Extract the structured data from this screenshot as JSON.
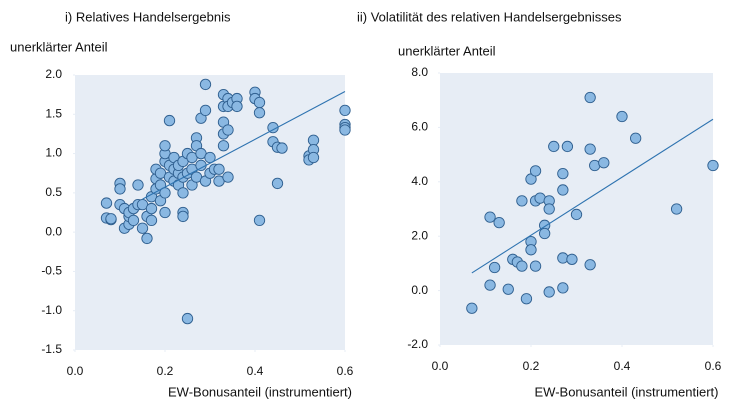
{
  "chart_data": [
    {
      "type": "scatter",
      "title": "i) Relatives Handelsergebnis",
      "y_label": "unerklärter Anteil",
      "x_label": "EW-Bonusanteil (instrumentiert)",
      "color": "#8ab8e2",
      "edgecolor": "#2f5f8f",
      "x": [
        0.07,
        0.07,
        0.08,
        0.08,
        0.1,
        0.1,
        0.1,
        0.11,
        0.11,
        0.12,
        0.12,
        0.12,
        0.13,
        0.13,
        0.14,
        0.14,
        0.15,
        0.15,
        0.16,
        0.16,
        0.17,
        0.17,
        0.17,
        0.18,
        0.18,
        0.18,
        0.19,
        0.19,
        0.19,
        0.2,
        0.2,
        0.2,
        0.2,
        0.2,
        0.21,
        0.21,
        0.21,
        0.22,
        0.22,
        0.22,
        0.23,
        0.23,
        0.23,
        0.24,
        0.24,
        0.24,
        0.24,
        0.24,
        0.25,
        0.25,
        0.25,
        0.26,
        0.26,
        0.26,
        0.27,
        0.27,
        0.27,
        0.28,
        0.28,
        0.28,
        0.29,
        0.29,
        0.29,
        0.3,
        0.3,
        0.31,
        0.32,
        0.32,
        0.33,
        0.33,
        0.33,
        0.33,
        0.33,
        0.34,
        0.34,
        0.34,
        0.34,
        0.35,
        0.36,
        0.36,
        0.4,
        0.4,
        0.41,
        0.41,
        0.41,
        0.44,
        0.44,
        0.45,
        0.45,
        0.46,
        0.52,
        0.52,
        0.53,
        0.53,
        0.53,
        0.6,
        0.6,
        0.6,
        0.6
      ],
      "values": [
        0.37,
        0.18,
        0.16,
        0.17,
        0.62,
        0.55,
        0.35,
        0.3,
        0.05,
        0.1,
        0.2,
        0.25,
        0.15,
        0.3,
        0.35,
        0.6,
        0.05,
        0.35,
        -0.08,
        0.2,
        0.15,
        0.3,
        0.45,
        0.55,
        0.68,
        0.8,
        0.4,
        0.6,
        0.75,
        0.5,
        0.9,
        1.0,
        1.1,
        0.25,
        0.7,
        0.85,
        1.42,
        0.8,
        0.65,
        0.95,
        0.6,
        0.75,
        0.85,
        0.5,
        0.7,
        0.9,
        0.25,
        0.2,
        0.75,
        1.0,
        -1.1,
        0.6,
        0.8,
        0.95,
        1.2,
        1.1,
        0.7,
        0.85,
        1.0,
        1.45,
        0.65,
        1.88,
        1.55,
        0.75,
        0.95,
        0.8,
        0.65,
        0.8,
        1.75,
        1.6,
        1.4,
        1.1,
        1.25,
        1.7,
        1.6,
        1.3,
        0.7,
        1.65,
        1.7,
        1.6,
        1.78,
        1.7,
        1.65,
        0.15,
        1.52,
        1.15,
        1.33,
        1.08,
        0.62,
        1.07,
        0.97,
        0.92,
        1.17,
        1.05,
        0.95,
        1.55,
        1.37,
        1.33,
        1.3
      ],
      "trend_line": {
        "x": [
          0.15,
          0.6
        ],
        "values": [
          0.42,
          1.79
        ],
        "color": "#2e73b0"
      },
      "xlim": [
        0,
        0.6
      ],
      "ylim": [
        -1.5,
        2.0
      ],
      "xticks": [
        {
          "value": 0,
          "label": "0.0"
        },
        0.2,
        0.4,
        0.6
      ],
      "yticks": [
        {
          "value": 2,
          "label": "2.0"
        },
        1.5,
        {
          "value": 1,
          "label": "1.0"
        },
        0.5,
        {
          "value": 0,
          "label": "0.0"
        },
        -0.5,
        {
          "value": -1,
          "label": "-1.0"
        },
        -1.5
      ]
    },
    {
      "type": "scatter",
      "title": "ii) Volatilität des relativen Handelsergebnisses",
      "y_label": "unerklärter Anteil",
      "x_label": "EW-Bonusanteil (instrumentiert)",
      "color": "#8ab8e2",
      "edgecolor": "#2f5f8f",
      "x": [
        0.07,
        0.11,
        0.11,
        0.12,
        0.13,
        0.15,
        0.16,
        0.17,
        0.18,
        0.18,
        0.19,
        0.2,
        0.2,
        0.2,
        0.21,
        0.21,
        0.21,
        0.22,
        0.23,
        0.23,
        0.24,
        0.24,
        0.24,
        0.25,
        0.27,
        0.27,
        0.27,
        0.27,
        0.28,
        0.29,
        0.3,
        0.33,
        0.33,
        0.33,
        0.34,
        0.36,
        0.4,
        0.43,
        0.52,
        0.6
      ],
      "values": [
        -0.65,
        2.7,
        0.2,
        0.85,
        2.5,
        0.05,
        1.15,
        1.05,
        0.9,
        3.3,
        -0.3,
        1.8,
        1.5,
        4.1,
        0.9,
        4.4,
        3.3,
        3.4,
        2.4,
        2.1,
        3.3,
        3.0,
        -0.05,
        5.3,
        4.3,
        3.7,
        1.2,
        0.1,
        5.3,
        1.15,
        2.8,
        7.1,
        5.2,
        0.95,
        4.6,
        4.7,
        6.4,
        5.6,
        3.0,
        4.6
      ],
      "trend_line": {
        "x": [
          0.07,
          0.6
        ],
        "values": [
          0.65,
          6.3
        ],
        "color": "#2e73b0"
      },
      "xlim": [
        0,
        0.6
      ],
      "ylim": [
        -2,
        8
      ],
      "xticks": [
        {
          "value": 0,
          "label": "0.0"
        },
        0.2,
        0.4,
        0.6
      ],
      "yticks": [
        {
          "value": 8,
          "label": "8.0"
        },
        {
          "value": 6,
          "label": "6.0"
        },
        {
          "value": 4,
          "label": "4.0"
        },
        {
          "value": 2,
          "label": "2.0"
        },
        {
          "value": 0,
          "label": "0.0"
        },
        {
          "value": -2,
          "label": "-2.0"
        }
      ]
    }
  ]
}
